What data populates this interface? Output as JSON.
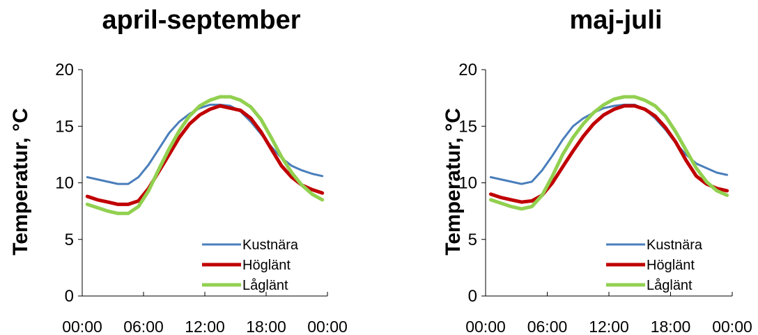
{
  "chart_data": [
    {
      "type": "line",
      "title": "april-september",
      "ylabel": "Temperatur, °C",
      "xlabel": "",
      "ylim": [
        0,
        20
      ],
      "yticks": [
        "0",
        "5",
        "10",
        "15",
        "20"
      ],
      "x_tick_labels": [
        "00:00",
        "06:00",
        "12:00",
        "18:00",
        "00:00"
      ],
      "x": [
        "00:00",
        "01:00",
        "02:00",
        "03:00",
        "04:00",
        "05:00",
        "06:00",
        "07:00",
        "08:00",
        "09:00",
        "10:00",
        "11:00",
        "12:00",
        "13:00",
        "14:00",
        "15:00",
        "16:00",
        "17:00",
        "18:00",
        "19:00",
        "20:00",
        "21:00",
        "22:00",
        "23:00"
      ],
      "legend_position": "bottom-right",
      "grid": false,
      "series": [
        {
          "name": "Kustnära",
          "color": "#4a7ebb",
          "width": 3,
          "values": [
            10.5,
            10.3,
            10.1,
            9.9,
            9.9,
            10.5,
            11.6,
            13.0,
            14.4,
            15.4,
            16.1,
            16.6,
            16.9,
            16.9,
            16.8,
            16.3,
            15.4,
            14.3,
            13.2,
            12.2,
            11.5,
            11.1,
            10.8,
            10.6
          ]
        },
        {
          "name": "Höglänt",
          "color": "#c00000",
          "width": 5,
          "values": [
            8.8,
            8.5,
            8.3,
            8.1,
            8.1,
            8.4,
            9.5,
            11.0,
            12.5,
            14.0,
            15.2,
            16.0,
            16.5,
            16.8,
            16.6,
            16.4,
            15.7,
            14.5,
            13.0,
            11.5,
            10.5,
            9.8,
            9.4,
            9.1
          ]
        },
        {
          "name": "Låglänt",
          "color": "#92d050",
          "width": 5,
          "values": [
            8.1,
            7.8,
            7.5,
            7.3,
            7.3,
            7.9,
            9.3,
            11.2,
            13.0,
            14.6,
            15.9,
            16.8,
            17.3,
            17.6,
            17.6,
            17.3,
            16.7,
            15.6,
            14.0,
            12.3,
            10.9,
            9.8,
            9.0,
            8.5
          ]
        }
      ]
    },
    {
      "type": "line",
      "title": "maj-juli",
      "ylabel": "Temperatur, °C",
      "xlabel": "",
      "ylim": [
        0,
        20
      ],
      "yticks": [
        "0",
        "5",
        "10",
        "15",
        "20"
      ],
      "x_tick_labels": [
        "00:00",
        "06:00",
        "12:00",
        "18:00",
        "00:00"
      ],
      "x": [
        "00:00",
        "01:00",
        "02:00",
        "03:00",
        "04:00",
        "05:00",
        "06:00",
        "07:00",
        "08:00",
        "09:00",
        "10:00",
        "11:00",
        "12:00",
        "13:00",
        "14:00",
        "15:00",
        "16:00",
        "17:00",
        "18:00",
        "19:00",
        "20:00",
        "21:00",
        "22:00",
        "23:00"
      ],
      "legend_position": "bottom-right",
      "grid": false,
      "series": [
        {
          "name": "Kustnära",
          "color": "#4a7ebb",
          "width": 3,
          "values": [
            10.5,
            10.3,
            10.1,
            9.9,
            10.1,
            11.1,
            12.4,
            13.8,
            15.0,
            15.7,
            16.2,
            16.6,
            16.8,
            16.9,
            16.9,
            16.5,
            15.7,
            14.7,
            13.5,
            12.5,
            11.7,
            11.3,
            10.9,
            10.7
          ]
        },
        {
          "name": "Höglänt",
          "color": "#c00000",
          "width": 5,
          "values": [
            9.0,
            8.7,
            8.5,
            8.3,
            8.4,
            8.9,
            10.0,
            11.4,
            12.8,
            14.1,
            15.2,
            16.0,
            16.5,
            16.8,
            16.8,
            16.5,
            15.9,
            14.9,
            13.6,
            12.0,
            10.6,
            9.9,
            9.5,
            9.3
          ]
        },
        {
          "name": "Låglänt",
          "color": "#92d050",
          "width": 5,
          "values": [
            8.5,
            8.2,
            7.9,
            7.7,
            7.9,
            8.9,
            10.6,
            12.5,
            14.0,
            15.2,
            16.2,
            16.9,
            17.4,
            17.6,
            17.6,
            17.3,
            16.8,
            15.9,
            14.5,
            12.9,
            11.3,
            10.1,
            9.3,
            8.9
          ]
        }
      ]
    }
  ]
}
